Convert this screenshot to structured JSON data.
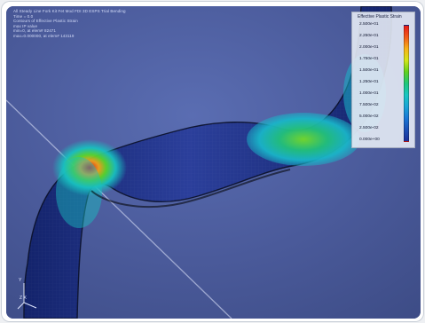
{
  "hud": {
    "line1": "All Steady Line Fork Kit Fet Mod FDI 3D ESPS Trial Bending",
    "line2": "Time =          0.0",
    "line3": "Contours of Effective Plastic Strain",
    "line4": "max IP value",
    "line5": "min=0, at elem# 82471",
    "line6": "max=0.000000, at elem# 143119"
  },
  "legend": {
    "title": "Effective Plastic Strain",
    "labels": [
      "2.500e-01",
      "2.250e-01",
      "2.000e-01",
      "1.750e-01",
      "1.500e-01",
      "1.250e-01",
      "1.000e-01",
      "7.500e-02",
      "5.000e-02",
      "2.500e-02",
      "0.000e+00"
    ],
    "colors": [
      "#e41b1b",
      "#f15a1a",
      "#f7b21a",
      "#d3e61a",
      "#62d11f",
      "#1fc77b",
      "#1ac6c2",
      "#1aa4d6",
      "#1a77d6",
      "#1b4fb6",
      "#1b2f98"
    ]
  },
  "triad": {
    "label_y": "Y",
    "label_xz": "Z  X"
  }
}
